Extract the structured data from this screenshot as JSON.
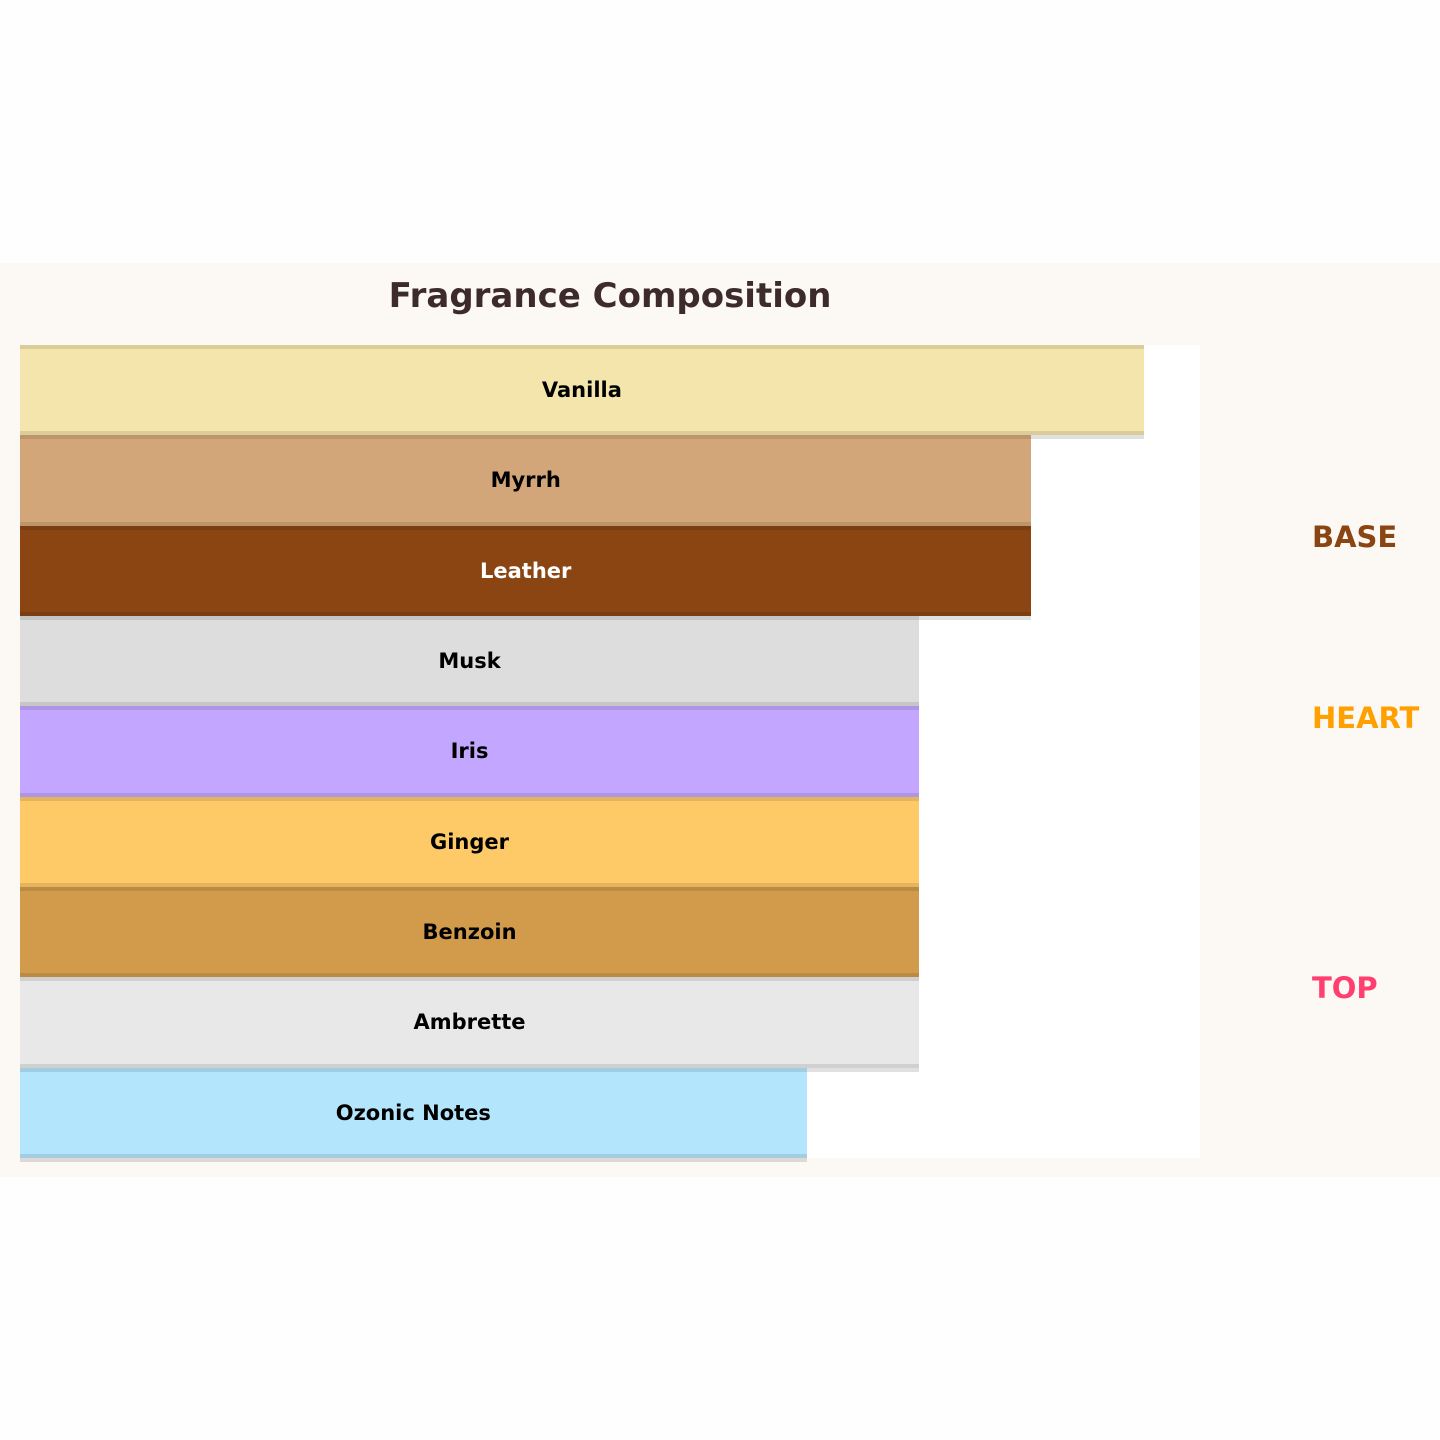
{
  "chart_data": {
    "type": "bar",
    "orientation": "horizontal",
    "title": "Fragrance Composition",
    "xlim": [
      0,
      10.5
    ],
    "grid": false,
    "categories": [
      "Vanilla",
      "Myrrh",
      "Leather",
      "Musk",
      "Iris",
      "Ginger",
      "Benzoin",
      "Ambrette",
      "Ozonic Notes"
    ],
    "values": [
      10,
      9,
      9,
      8,
      8,
      8,
      8,
      8,
      7
    ],
    "colors": [
      "#F3E5AB",
      "#D2A679",
      "#8B4513",
      "#DDDDDD",
      "#C3A6FF",
      "#FDCA67",
      "#D29B4B",
      "#E8E8E8",
      "#B3E5FC"
    ],
    "label_colors": [
      "#000000",
      "#000000",
      "#ffffff",
      "#000000",
      "#000000",
      "#000000",
      "#000000",
      "#000000",
      "#000000"
    ],
    "layers": [
      {
        "label": "BASE",
        "color": "#8B4513"
      },
      {
        "label": "HEART",
        "color": "#FF9F00"
      },
      {
        "label": "TOP",
        "color": "#FF3F6F"
      }
    ]
  }
}
